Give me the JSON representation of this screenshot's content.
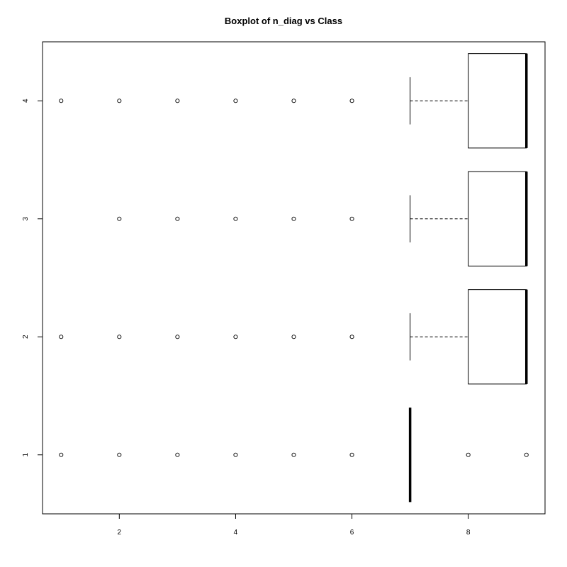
{
  "chart_data": {
    "type": "boxplot",
    "orientation": "horizontal",
    "title": "Boxplot of n_diag vs Class",
    "xlabel": "",
    "ylabel": "",
    "xlim": [
      0.68,
      9.32
    ],
    "ylim": [
      0.5,
      4.5
    ],
    "x_ticks": [
      2,
      4,
      6,
      8
    ],
    "categories": [
      "1",
      "2",
      "3",
      "4"
    ],
    "grid": false,
    "boxes": [
      {
        "category": "1",
        "lower_whisker": 7,
        "q1": 7,
        "median": 7,
        "q3": 7,
        "upper_whisker": 7,
        "outliers": [
          1,
          2,
          3,
          4,
          5,
          6,
          8,
          9
        ]
      },
      {
        "category": "2",
        "lower_whisker": 7,
        "q1": 8,
        "median": 9,
        "q3": 9,
        "upper_whisker": 9,
        "outliers": [
          1,
          2,
          3,
          4,
          5,
          6
        ]
      },
      {
        "category": "3",
        "lower_whisker": 7,
        "q1": 8,
        "median": 9,
        "q3": 9,
        "upper_whisker": 9,
        "outliers": [
          2,
          3,
          4,
          5,
          6
        ]
      },
      {
        "category": "4",
        "lower_whisker": 7,
        "q1": 8,
        "median": 9,
        "q3": 9,
        "upper_whisker": 9,
        "outliers": [
          1,
          2,
          3,
          4,
          5,
          6
        ]
      }
    ]
  }
}
